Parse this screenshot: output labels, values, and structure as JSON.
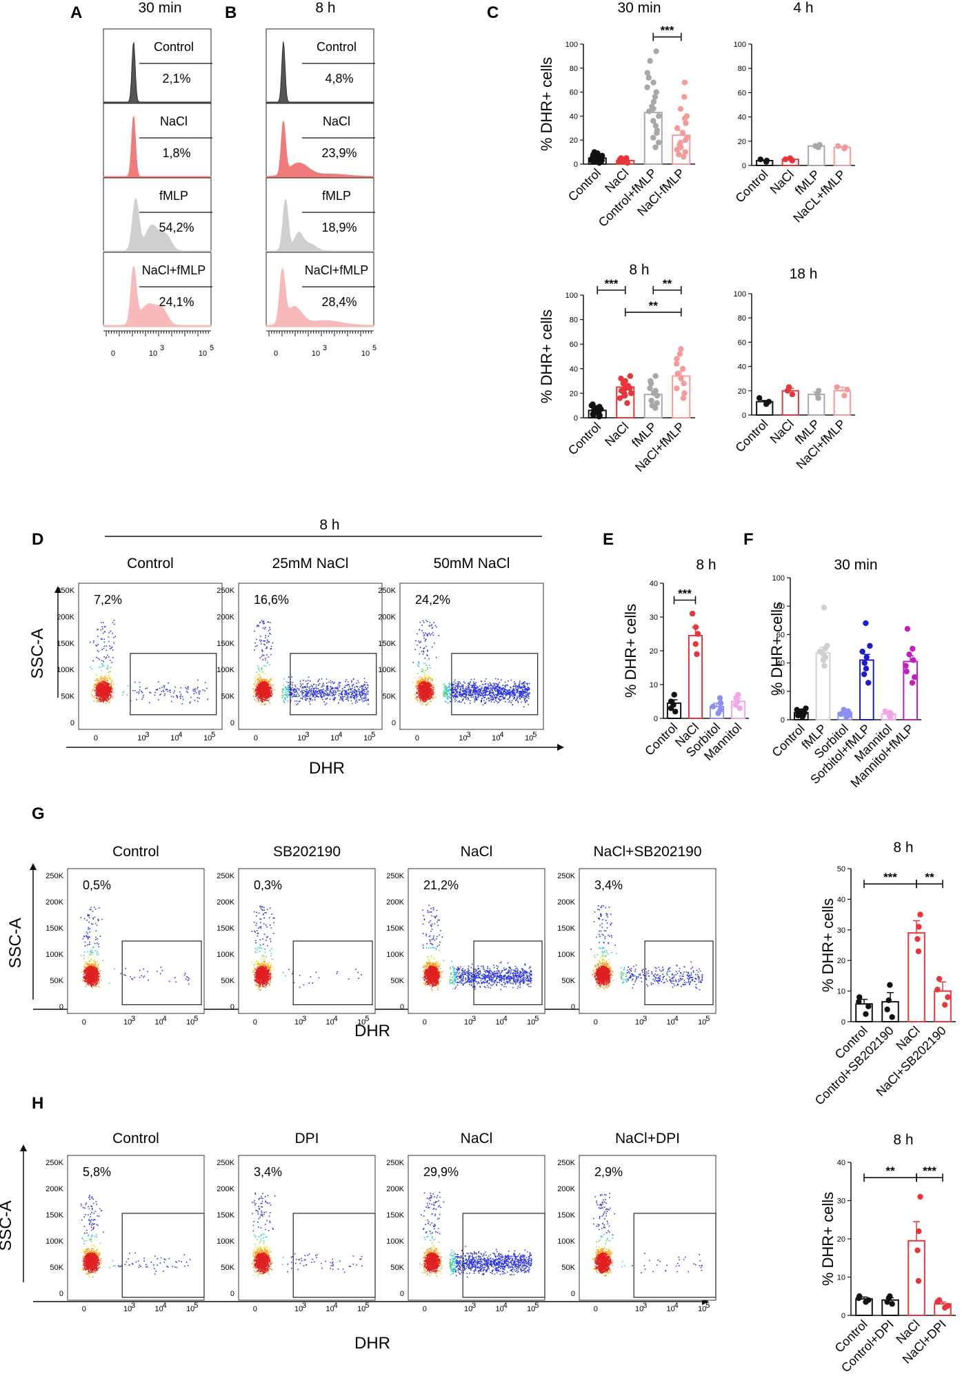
{
  "panels": {
    "A": {
      "label": "A",
      "title": "30 min",
      "histograms": [
        {
          "name": "Control",
          "pct": "2,1%",
          "color": "#555555"
        },
        {
          "name": "NaCl",
          "pct": "1,8%",
          "color": "#f07b7b"
        },
        {
          "name": "fMLP",
          "pct": "54,2%",
          "color": "#cfcfcf"
        },
        {
          "name": "NaCl+fMLP",
          "pct": "24,1%",
          "color": "#f7b9b9"
        }
      ],
      "axis_ticks": [
        "0",
        "10",
        "3",
        "10",
        "5"
      ]
    },
    "B": {
      "label": "B",
      "title": "8 h",
      "histograms": [
        {
          "name": "Control",
          "pct": "4,8%",
          "color": "#555555"
        },
        {
          "name": "NaCl",
          "pct": "23,9%",
          "color": "#f07b7b"
        },
        {
          "name": "fMLP",
          "pct": "18,9%",
          "color": "#cfcfcf"
        },
        {
          "name": "NaCl+fMLP",
          "pct": "28,4%",
          "color": "#f7b9b9"
        }
      ],
      "axis_ticks": [
        "0",
        "10",
        "3",
        "10",
        "5"
      ]
    },
    "C": {
      "label": "C"
    },
    "D": {
      "label": "D",
      "title": "8 h",
      "xaxis": "DHR",
      "yaxis": "SSC-A",
      "plots": [
        {
          "name": "Control",
          "pct": "7,2%"
        },
        {
          "name": "25mM NaCl",
          "pct": "16,6%"
        },
        {
          "name": "50mM NaCl",
          "pct": "24,2%"
        }
      ]
    },
    "E": {
      "label": "E"
    },
    "F": {
      "label": "F"
    },
    "G": {
      "label": "G",
      "xaxis": "DHR",
      "yaxis": "SSC-A",
      "plots": [
        {
          "name": "Control",
          "pct": "0,5%"
        },
        {
          "name": "SB202190",
          "pct": "0,3%"
        },
        {
          "name": "NaCl",
          "pct": "21,2%"
        },
        {
          "name": "NaCl+SB202190",
          "pct": "3,4%"
        }
      ]
    },
    "H": {
      "label": "H",
      "xaxis": "DHR",
      "yaxis": "SSC-A",
      "plots": [
        {
          "name": "Control",
          "pct": "5,8%"
        },
        {
          "name": "DPI",
          "pct": "3,4%"
        },
        {
          "name": "NaCl",
          "pct": "29,9%"
        },
        {
          "name": "NaCl+DPI",
          "pct": "2,9%"
        }
      ]
    }
  },
  "flow_ticks": {
    "y": [
      "250K",
      "200K",
      "150K",
      "100K",
      "50K",
      "0"
    ],
    "x": [
      "0",
      "10",
      "10",
      "10"
    ],
    "x_exp": [
      "3",
      "4",
      "5"
    ]
  },
  "colors": {
    "black": "#111111",
    "red": "#e8353b",
    "grey": "#a8a8a8",
    "pink": "#f59a9a",
    "blue_light": "#8a8ff0",
    "pink_light": "#f0a7e8",
    "blue_dark": "#1c1ccf",
    "purple": "#c020c0",
    "grey_light": "#d0d0d0"
  },
  "chart_data": [
    {
      "id": "C-30min",
      "type": "bar",
      "title": "30 min",
      "ylabel": "% DHR+ cells",
      "categories": [
        "Control",
        "NaCl",
        "Control+fMLP",
        "NaCl-fMLP"
      ],
      "values": [
        5,
        3,
        43,
        24
      ],
      "errors": [
        1,
        0.5,
        4,
        4
      ],
      "ylim": [
        0,
        100
      ],
      "yticks": [
        0,
        20,
        40,
        60,
        80,
        100
      ],
      "colors": [
        "#111111",
        "#e8353b",
        "#a8a8a8",
        "#f59a9a"
      ],
      "points": [
        [
          1,
          2,
          3,
          4,
          5,
          6,
          7,
          8,
          9,
          10,
          2,
          3,
          4,
          5,
          6,
          3,
          4,
          7
        ],
        [
          1,
          2,
          3,
          4,
          5,
          2,
          3,
          4,
          2,
          3,
          5,
          4
        ],
        [
          14,
          18,
          22,
          26,
          28,
          32,
          36,
          40,
          44,
          46,
          48,
          52,
          56,
          60,
          64,
          68,
          72,
          76,
          86,
          94
        ],
        [
          6,
          8,
          10,
          12,
          14,
          16,
          18,
          20,
          22,
          26,
          30,
          34,
          38,
          40,
          46,
          56,
          68
        ]
      ],
      "significance": [
        {
          "from": 2,
          "to": 3,
          "label": "***",
          "y": 106
        }
      ]
    },
    {
      "id": "C-4h",
      "type": "bar",
      "title": "4 h",
      "ylabel": "",
      "categories": [
        "Control",
        "NaCl",
        "fMLP",
        "NaCL+fMLP"
      ],
      "values": [
        4,
        5,
        16,
        15
      ],
      "errors": [
        0.5,
        1,
        1,
        0.5
      ],
      "ylim": [
        0,
        100
      ],
      "yticks": [
        0,
        20,
        40,
        60,
        80,
        100
      ],
      "colors": [
        "#111111",
        "#e8353b",
        "#a8a8a8",
        "#f59a9a"
      ],
      "points": [
        [
          3,
          4,
          5
        ],
        [
          4,
          5,
          6
        ],
        [
          15,
          16,
          17
        ],
        [
          14,
          15,
          16
        ]
      ],
      "significance": []
    },
    {
      "id": "C-8h",
      "type": "bar",
      "title": "8 h",
      "ylabel": "% DHR+ cells",
      "categories": [
        "Control",
        "NaCl",
        "fMLP",
        "NaCl+fMLP"
      ],
      "values": [
        6,
        25,
        19,
        34
      ],
      "errors": [
        1,
        2,
        3,
        4
      ],
      "ylim": [
        0,
        100
      ],
      "yticks": [
        0,
        20,
        40,
        60,
        80,
        100
      ],
      "colors": [
        "#111111",
        "#e8353b",
        "#a8a8a8",
        "#f59a9a"
      ],
      "points": [
        [
          1,
          2,
          3,
          4,
          5,
          6,
          7,
          8,
          9,
          10,
          11,
          2,
          4
        ],
        [
          12,
          16,
          18,
          20,
          22,
          24,
          26,
          28,
          30,
          32,
          34,
          24,
          20,
          18
        ],
        [
          8,
          10,
          12,
          14,
          18,
          20,
          22,
          24,
          28,
          30,
          34
        ],
        [
          16,
          20,
          24,
          28,
          32,
          36,
          40,
          44,
          48,
          52,
          56
        ]
      ],
      "significance": [
        {
          "from": 0,
          "to": 1,
          "label": "***",
          "y": 104
        },
        {
          "from": 2,
          "to": 3,
          "label": "**",
          "y": 104
        },
        {
          "from": 1,
          "to": 3,
          "label": "**",
          "y": 86
        }
      ]
    },
    {
      "id": "C-18h",
      "type": "bar",
      "title": "18 h",
      "ylabel": "",
      "categories": [
        "Control",
        "NaCl",
        "fMLP",
        "NaCl+fMLP"
      ],
      "values": [
        11,
        20,
        17,
        20
      ],
      "errors": [
        1,
        2,
        2,
        3
      ],
      "ylim": [
        0,
        100
      ],
      "yticks": [
        0,
        20,
        40,
        60,
        80,
        100
      ],
      "colors": [
        "#111111",
        "#e8353b",
        "#a8a8a8",
        "#f59a9a"
      ],
      "points": [
        [
          9,
          11,
          14
        ],
        [
          17,
          20,
          23
        ],
        [
          14,
          17,
          20
        ],
        [
          16,
          21,
          23
        ]
      ],
      "significance": []
    },
    {
      "id": "E",
      "type": "bar",
      "title": "8 h",
      "ylabel": "% DHR+ cells",
      "categories": [
        "Control",
        "NaCl",
        "Sorbitol",
        "Mannitol"
      ],
      "values": [
        4.5,
        24.5,
        3.5,
        5
      ],
      "errors": [
        1,
        2.5,
        1,
        1
      ],
      "ylim": [
        0,
        40
      ],
      "yticks": [
        0,
        10,
        20,
        30,
        40
      ],
      "colors": [
        "#111111",
        "#e8353b",
        "#8a8ff0",
        "#f0a7e8"
      ],
      "points": [
        [
          2,
          3,
          4,
          5,
          7
        ],
        [
          19,
          22,
          25,
          27,
          31
        ],
        [
          1.5,
          2.5,
          3.5,
          4.5,
          6
        ],
        [
          3,
          4,
          5,
          6,
          7
        ]
      ],
      "significance": [
        {
          "from": 0,
          "to": 1,
          "label": "***",
          "y": 35
        }
      ]
    },
    {
      "id": "F",
      "type": "bar",
      "title": "30 min",
      "ylabel": "% DHR+ cells",
      "categories": [
        "Control",
        "fMLP",
        "Sorbitol",
        "Sorbitol+fMLP",
        "Mannitol",
        "Mannitol+fMLP"
      ],
      "values": [
        5,
        47,
        5,
        42,
        4,
        41
      ],
      "errors": [
        1,
        4,
        1,
        4,
        1,
        4
      ],
      "ylim": [
        0,
        100
      ],
      "yticks": [
        0,
        20,
        40,
        60,
        80,
        100
      ],
      "colors": [
        "#111111",
        "#d0d0d0",
        "#8a8ff0",
        "#1c1ccf",
        "#f0a7e8",
        "#c020c0"
      ],
      "points": [
        [
          2,
          3,
          4,
          5,
          6,
          7,
          8,
          3,
          5
        ],
        [
          38,
          42,
          44,
          46,
          48,
          50,
          52,
          79
        ],
        [
          2,
          3,
          4,
          5,
          6,
          7,
          3,
          5
        ],
        [
          26,
          32,
          36,
          40,
          44,
          48,
          52,
          68
        ],
        [
          2,
          3,
          4,
          5,
          6,
          3,
          4
        ],
        [
          26,
          30,
          34,
          38,
          42,
          46,
          50,
          64
        ]
      ],
      "significance": []
    },
    {
      "id": "G-bar",
      "type": "bar",
      "title": "8 h",
      "ylabel": "% DHR+ cells",
      "categories": [
        "Control",
        "Control+SB202190",
        "NaCl",
        "NaCl+SB202190"
      ],
      "values": [
        5.8,
        6.5,
        29,
        10
      ],
      "errors": [
        1.5,
        3,
        4,
        3
      ],
      "ylim": [
        0,
        50
      ],
      "yticks": [
        0,
        10,
        20,
        30,
        40,
        50
      ],
      "colors": [
        "#111111",
        "#111111",
        "#e8353b",
        "#e8353b"
      ],
      "points": [
        [
          2.5,
          5,
          6.5,
          8
        ],
        [
          1.5,
          4,
          7,
          12
        ],
        [
          23,
          27,
          31,
          35
        ],
        [
          5.5,
          8,
          10.5,
          14
        ]
      ],
      "significance": [
        {
          "from": 0,
          "to": 2,
          "label": "***",
          "y": 45
        },
        {
          "from": 2,
          "to": 3,
          "label": "**",
          "y": 45
        }
      ]
    },
    {
      "id": "H-bar",
      "type": "bar",
      "title": "8 h",
      "ylabel": "% DHR+ cells",
      "categories": [
        "Control",
        "Control+DPI",
        "NaCl",
        "NaCl+DPI"
      ],
      "values": [
        4.3,
        4,
        19.5,
        3
      ],
      "errors": [
        0.5,
        0.6,
        5,
        0.5
      ],
      "ylim": [
        0,
        40
      ],
      "yticks": [
        0,
        10,
        20,
        30,
        40
      ],
      "colors": [
        "#111111",
        "#111111",
        "#e8353b",
        "#e8353b"
      ],
      "points": [
        [
          3.5,
          4,
          4.5,
          5
        ],
        [
          3,
          3.5,
          4.5,
          5
        ],
        [
          9,
          17,
          22,
          31
        ],
        [
          2,
          2.5,
          3.5,
          4
        ]
      ],
      "significance": [
        {
          "from": 0,
          "to": 2,
          "label": "**",
          "y": 36
        },
        {
          "from": 2,
          "to": 3,
          "label": "***",
          "y": 36
        }
      ]
    }
  ]
}
